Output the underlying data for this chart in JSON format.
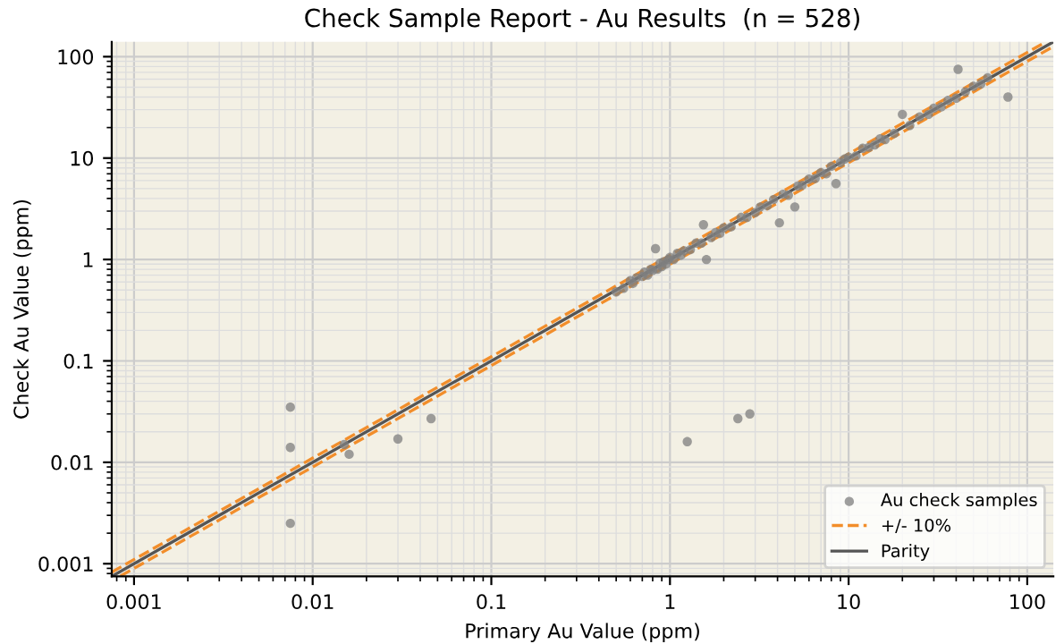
{
  "chart_data": {
    "type": "scatter",
    "title": "Check Sample Report - Au Results  (n = 528)",
    "xlabel": "Primary Au Value (ppm)",
    "ylabel": "Check Au Value (ppm)",
    "log": "xy",
    "xlim": [
      0.00075,
      140
    ],
    "ylim": [
      0.00075,
      140
    ],
    "xticks": [
      0.001,
      0.01,
      0.1,
      1,
      10,
      100
    ],
    "yticks": [
      0.001,
      0.01,
      0.1,
      1,
      10,
      100
    ],
    "grid": true,
    "legend": "bottom right",
    "series": [
      {
        "name": "Au check samples",
        "marker": "circle",
        "color": "#7f7f7f",
        "x": [
          0.0075,
          0.0075,
          0.0075,
          0.016,
          0.03,
          0.046,
          1.25,
          2.4,
          2.8,
          0.015,
          0.5,
          0.55,
          0.6,
          0.62,
          0.65,
          0.7,
          0.72,
          0.75,
          0.78,
          0.8,
          0.83,
          0.85,
          0.88,
          0.9,
          0.92,
          0.95,
          0.98,
          1.0,
          1.05,
          1.1,
          1.15,
          1.2,
          1.3,
          1.4,
          1.5,
          1.54,
          1.6,
          1.7,
          1.8,
          1.9,
          2.0,
          2.2,
          2.5,
          2.7,
          3.0,
          3.2,
          3.5,
          3.8,
          4.1,
          4.3,
          4.6,
          5.0,
          5.2,
          5.5,
          6.0,
          6.5,
          7.0,
          7.5,
          8.0,
          8.5,
          9.0,
          9.5,
          10,
          11,
          12,
          13,
          14,
          15,
          16,
          18,
          20,
          22,
          25,
          28,
          30,
          33,
          36,
          40,
          41,
          45,
          50,
          55,
          60,
          78
        ],
        "values": [
          0.035,
          0.014,
          0.0025,
          0.012,
          0.017,
          0.027,
          0.016,
          0.027,
          0.03,
          0.015,
          0.48,
          0.52,
          0.62,
          0.58,
          0.66,
          0.68,
          0.75,
          0.7,
          0.8,
          0.78,
          1.28,
          0.8,
          0.92,
          0.85,
          0.95,
          0.9,
          1.0,
          1.05,
          1.0,
          1.15,
          1.1,
          1.22,
          1.25,
          1.45,
          1.45,
          2.2,
          1.0,
          1.65,
          1.85,
          1.8,
          2.05,
          2.1,
          2.6,
          2.6,
          2.9,
          3.3,
          3.4,
          3.9,
          2.3,
          4.4,
          4.3,
          3.3,
          5.3,
          5.4,
          6.2,
          6.3,
          7.2,
          7.0,
          8.3,
          5.6,
          9.0,
          9.8,
          10.2,
          10.5,
          12.5,
          12.8,
          13.5,
          15.5,
          15.2,
          17.5,
          27,
          21,
          25.5,
          27,
          31,
          32,
          37,
          39,
          75,
          45,
          51,
          54,
          62,
          40
        ]
      },
      {
        "name": "+/- 10%",
        "type": "line",
        "color": "#f28e2b",
        "line_style": "dashed",
        "x": [
          0.00075,
          127
        ],
        "values": [
          0.000825,
          139.7
        ]
      },
      {
        "type": "line",
        "color": "#f28e2b",
        "line_style": "dashed",
        "x": [
          0.00084,
          140
        ],
        "values": [
          0.000756,
          126
        ]
      },
      {
        "name": "Parity",
        "type": "line",
        "color": "#555555",
        "line_style": "solid",
        "x": [
          0.00075,
          140
        ],
        "values": [
          0.00075,
          140
        ]
      }
    ]
  }
}
